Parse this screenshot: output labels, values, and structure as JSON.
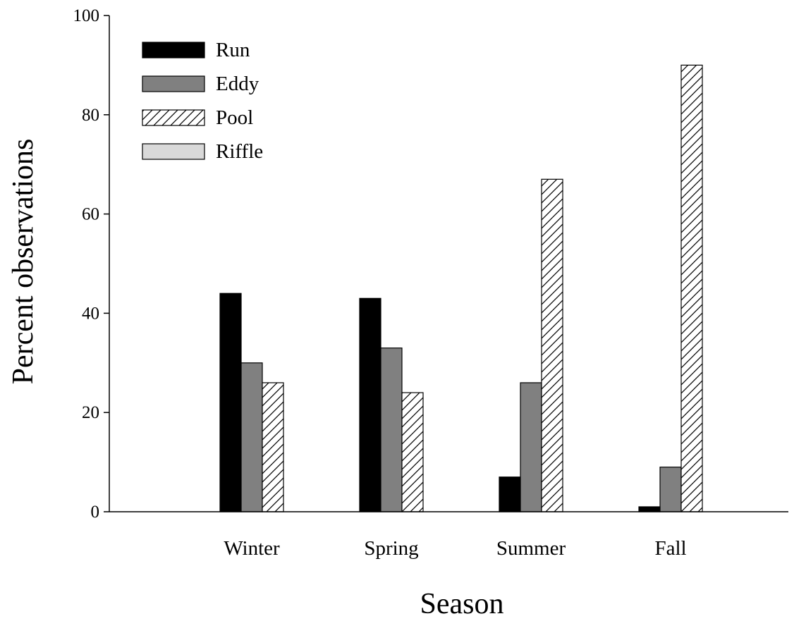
{
  "chart_data": {
    "type": "bar",
    "categories": [
      "Winter",
      "Spring",
      "Summer",
      "Fall"
    ],
    "series": [
      {
        "name": "Run",
        "values": [
          44,
          43,
          7,
          1
        ],
        "fill": "#000000",
        "pattern": "solid"
      },
      {
        "name": "Eddy",
        "values": [
          30,
          33,
          26,
          9
        ],
        "fill": "#808080",
        "pattern": "solid"
      },
      {
        "name": "Pool",
        "values": [
          26,
          24,
          67,
          90
        ],
        "fill": "#ffffff",
        "pattern": "diagonal-hatch"
      },
      {
        "name": "Riffle",
        "values": [
          0,
          0,
          0,
          0
        ],
        "fill": "#d9d9d9",
        "pattern": "solid"
      }
    ],
    "xlabel": "Season",
    "ylabel": "Percent observations",
    "ylim": [
      0,
      100
    ],
    "yticks": [
      0,
      20,
      40,
      60,
      80,
      100
    ],
    "ytick_labels": [
      "0",
      "20",
      "40",
      "60",
      "80",
      "100"
    ],
    "grid": false,
    "legend_position": "top-left"
  }
}
